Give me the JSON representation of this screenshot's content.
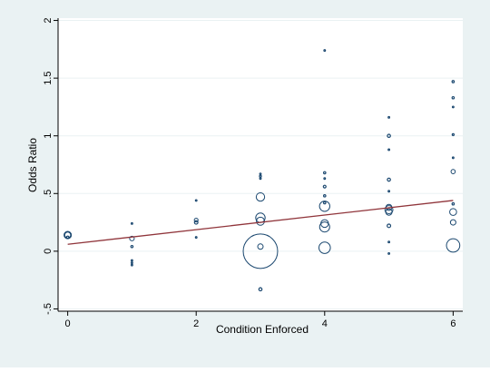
{
  "chart_data": {
    "type": "scatter",
    "title": "",
    "xlabel": "Condition Enforced",
    "ylabel": "Odds Ratio",
    "xlim": [
      -0.15,
      6.15
    ],
    "ylim": [
      -0.52,
      2.02
    ],
    "xticks": [
      0,
      2,
      4,
      6
    ],
    "yticks": [
      -0.5,
      0,
      0.5,
      1,
      1.5,
      2
    ],
    "ytick_labels": [
      "-.5",
      "0",
      ".5",
      "1",
      "1.5",
      "2"
    ],
    "grid": "horizontal",
    "legend": "none",
    "points": [
      {
        "x": 0,
        "y": 0.14,
        "w": 0.45
      },
      {
        "x": 0,
        "y": 0.14,
        "w": 0.3
      },
      {
        "x": 0,
        "y": 0.12,
        "w": 0.05
      },
      {
        "x": 1,
        "y": 0.24,
        "w": 0.02
      },
      {
        "x": 1,
        "y": 0.11,
        "w": 0.18
      },
      {
        "x": 1,
        "y": 0.04,
        "w": 0.04
      },
      {
        "x": 1,
        "y": -0.08,
        "w": 0.02
      },
      {
        "x": 1,
        "y": -0.1,
        "w": 0.02
      },
      {
        "x": 1,
        "y": -0.12,
        "w": 0.02
      },
      {
        "x": 2,
        "y": 0.44,
        "w": 0.02
      },
      {
        "x": 2,
        "y": 0.27,
        "w": 0.12
      },
      {
        "x": 2,
        "y": 0.25,
        "w": 0.1
      },
      {
        "x": 2,
        "y": 0.12,
        "w": 0.02
      },
      {
        "x": 3,
        "y": 0.67,
        "w": 0.02
      },
      {
        "x": 3,
        "y": 0.65,
        "w": 0.03
      },
      {
        "x": 3,
        "y": 0.63,
        "w": 0.02
      },
      {
        "x": 3,
        "y": 0.47,
        "w": 0.6
      },
      {
        "x": 3,
        "y": 0.29,
        "w": 0.75
      },
      {
        "x": 3,
        "y": 0.26,
        "w": 0.55
      },
      {
        "x": 3,
        "y": 0.04,
        "w": 0.25
      },
      {
        "x": 3,
        "y": 0.0,
        "w": 10.0
      },
      {
        "x": 3,
        "y": -0.33,
        "w": 0.08
      },
      {
        "x": 4,
        "y": 1.74,
        "w": 0.02
      },
      {
        "x": 4,
        "y": 0.68,
        "w": 0.04
      },
      {
        "x": 4,
        "y": 0.63,
        "w": 0.02
      },
      {
        "x": 4,
        "y": 0.56,
        "w": 0.06
      },
      {
        "x": 4,
        "y": 0.48,
        "w": 0.04
      },
      {
        "x": 4,
        "y": 0.42,
        "w": 0.04
      },
      {
        "x": 4,
        "y": 0.39,
        "w": 0.9
      },
      {
        "x": 4,
        "y": 0.24,
        "w": 0.5
      },
      {
        "x": 4,
        "y": 0.21,
        "w": 0.85
      },
      {
        "x": 4,
        "y": 0.03,
        "w": 1.1
      },
      {
        "x": 5,
        "y": 1.16,
        "w": 0.02
      },
      {
        "x": 5,
        "y": 1.0,
        "w": 0.08
      },
      {
        "x": 5,
        "y": 0.88,
        "w": 0.02
      },
      {
        "x": 5,
        "y": 0.62,
        "w": 0.08
      },
      {
        "x": 5,
        "y": 0.52,
        "w": 0.02
      },
      {
        "x": 5,
        "y": 0.38,
        "w": 0.3
      },
      {
        "x": 5,
        "y": 0.36,
        "w": 0.55
      },
      {
        "x": 5,
        "y": 0.34,
        "w": 0.35
      },
      {
        "x": 5,
        "y": 0.22,
        "w": 0.1
      },
      {
        "x": 5,
        "y": 0.08,
        "w": 0.02
      },
      {
        "x": 5,
        "y": -0.02,
        "w": 0.02
      },
      {
        "x": 6,
        "y": 1.47,
        "w": 0.04
      },
      {
        "x": 6,
        "y": 1.33,
        "w": 0.04
      },
      {
        "x": 6,
        "y": 1.25,
        "w": 0.02
      },
      {
        "x": 6,
        "y": 1.01,
        "w": 0.03
      },
      {
        "x": 6,
        "y": 0.81,
        "w": 0.02
      },
      {
        "x": 6,
        "y": 0.69,
        "w": 0.15
      },
      {
        "x": 6,
        "y": 0.41,
        "w": 0.04
      },
      {
        "x": 6,
        "y": 0.34,
        "w": 0.4
      },
      {
        "x": 6,
        "y": 0.25,
        "w": 0.25
      },
      {
        "x": 6,
        "y": 0.05,
        "w": 1.5
      }
    ],
    "fit_line": {
      "x": [
        0,
        6
      ],
      "y": [
        0.06,
        0.44
      ]
    },
    "colors": {
      "background": "#eaf2f3",
      "plot_area": "#ffffff",
      "grid": "#eaf2f3",
      "marker": "#1a476f",
      "fit_line": "#90353b",
      "axis": "#000000"
    }
  }
}
